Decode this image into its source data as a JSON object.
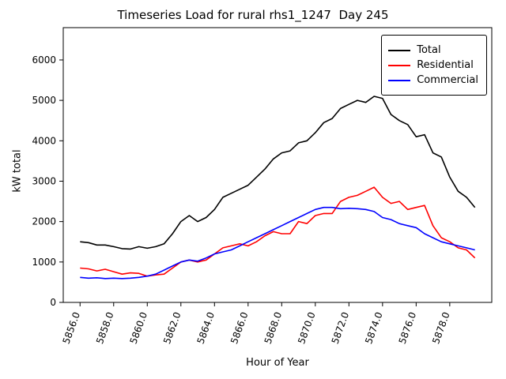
{
  "chart_data": {
    "type": "line",
    "title": "Timeseries Load for rural rhs1_1247  Day 245",
    "xlabel": "Hour of Year",
    "ylabel": "kW total",
    "xlim": [
      5855.0,
      5880.5
    ],
    "ylim": [
      0,
      6800
    ],
    "xticks": [
      5856,
      5858,
      5860,
      5862,
      5864,
      5866,
      5868,
      5870,
      5872,
      5874,
      5876,
      5878
    ],
    "xtick_labels": [
      "5856.0",
      "5858.0",
      "5860.0",
      "5862.0",
      "5864.0",
      "5866.0",
      "5868.0",
      "5870.0",
      "5872.0",
      "5874.0",
      "5876.0",
      "5878.0"
    ],
    "yticks": [
      0,
      1000,
      2000,
      3000,
      4000,
      5000,
      6000
    ],
    "legend_position": "upper right",
    "grid": false,
    "x": [
      5856.0,
      5856.5,
      5857.0,
      5857.5,
      5858.0,
      5858.5,
      5859.0,
      5859.5,
      5860.0,
      5860.5,
      5861.0,
      5861.5,
      5862.0,
      5862.5,
      5863.0,
      5863.5,
      5864.0,
      5864.5,
      5865.0,
      5865.5,
      5866.0,
      5866.5,
      5867.0,
      5867.5,
      5868.0,
      5868.5,
      5869.0,
      5869.5,
      5870.0,
      5870.5,
      5871.0,
      5871.5,
      5872.0,
      5872.5,
      5873.0,
      5873.5,
      5874.0,
      5874.5,
      5875.0,
      5875.5,
      5876.0,
      5876.5,
      5877.0,
      5877.5,
      5878.0,
      5878.5,
      5879.0,
      5879.5
    ],
    "series": [
      {
        "name": "Total",
        "color": "#000000",
        "values": [
          1500,
          1480,
          1420,
          1420,
          1380,
          1330,
          1320,
          1380,
          1340,
          1380,
          1450,
          1700,
          2000,
          2150,
          2000,
          2100,
          2300,
          2600,
          2700,
          2800,
          2900,
          3100,
          3300,
          3550,
          3700,
          3750,
          3950,
          4000,
          4200,
          4450,
          4550,
          4800,
          4900,
          5000,
          4950,
          5100,
          5050,
          4650,
          4500,
          4400,
          4100,
          4150,
          3700,
          3600,
          3100,
          2750,
          2600,
          2350
        ]
      },
      {
        "name": "Residential",
        "color": "#ff0000",
        "values": [
          850,
          830,
          780,
          820,
          760,
          700,
          730,
          720,
          650,
          680,
          700,
          850,
          1000,
          1050,
          1000,
          1050,
          1200,
          1350,
          1400,
          1450,
          1400,
          1500,
          1650,
          1750,
          1700,
          1700,
          2000,
          1950,
          2150,
          2200,
          2200,
          2500,
          2600,
          2650,
          2750,
          2850,
          2600,
          2450,
          2500,
          2300,
          2350,
          2400,
          1900,
          1600,
          1500,
          1350,
          1300,
          1100
        ]
      },
      {
        "name": "Commercial",
        "color": "#0000ff",
        "values": [
          620,
          600,
          610,
          590,
          600,
          590,
          600,
          620,
          650,
          700,
          800,
          900,
          1000,
          1050,
          1020,
          1100,
          1200,
          1250,
          1300,
          1400,
          1500,
          1600,
          1700,
          1800,
          1900,
          2000,
          2100,
          2200,
          2300,
          2350,
          2350,
          2320,
          2330,
          2320,
          2300,
          2250,
          2100,
          2050,
          1950,
          1900,
          1850,
          1700,
          1600,
          1500,
          1450,
          1400,
          1350,
          1300
        ]
      }
    ]
  }
}
